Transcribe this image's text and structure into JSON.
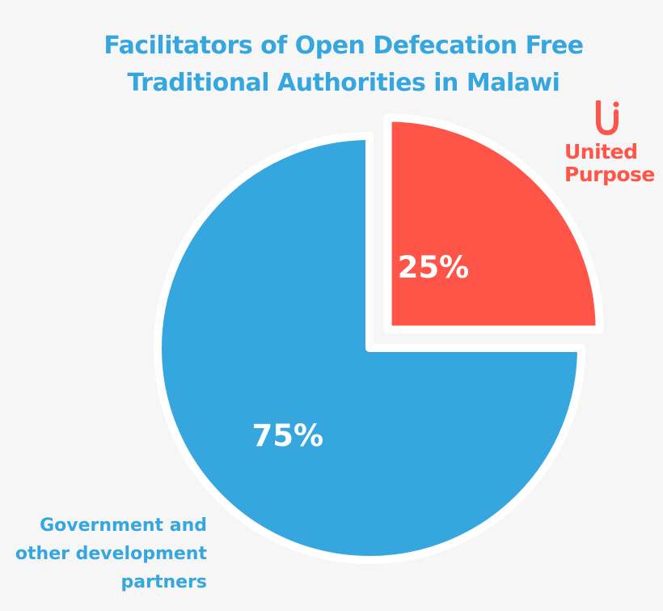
{
  "chart_data": {
    "type": "pie",
    "title_lines": [
      "Facilitators of Open Defecation Free",
      "Traditional Authorities in Malawi"
    ],
    "slices": [
      {
        "name": "United Purpose",
        "label_lines": [
          "United",
          "Purpose"
        ],
        "value": 25,
        "value_label": "25%",
        "color": "#fe5548",
        "exploded": true
      },
      {
        "name": "Government and other development partners",
        "label_lines": [
          "Government and",
          "other development",
          "partners"
        ],
        "value": 75,
        "value_label": "75%",
        "color": "#35a7de",
        "exploded": false
      }
    ],
    "start_angle_deg": 0,
    "direction": "clockwise",
    "legend": "labels beside slices"
  },
  "colors": {
    "title": "#35a7de",
    "background": "#f6f6f6",
    "slice_outline": "#ffffff"
  },
  "icons": {
    "logo": "united-purpose-logo-icon"
  }
}
